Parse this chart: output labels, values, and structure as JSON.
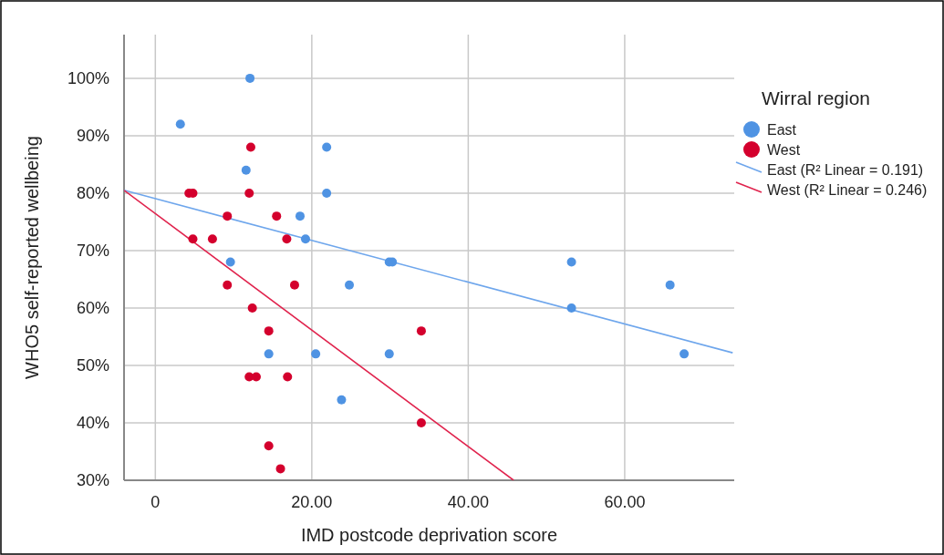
{
  "chart_data": {
    "type": "scatter",
    "xlabel": "IMD postcode deprivation score",
    "ylabel": "WHO5 self-reported wellbeing",
    "legend_title": "Wirral region",
    "legend": "right",
    "grid": true,
    "marker": "circle",
    "xlim": [
      -4,
      74
    ],
    "ylim": [
      30,
      107.6
    ],
    "xticks": [
      0,
      {
        "value": 20,
        "label": "20.00"
      },
      {
        "value": 40,
        "label": "40.00"
      },
      {
        "value": 60,
        "label": "60.00"
      }
    ],
    "yticks": [
      {
        "value": 30,
        "label": "30%"
      },
      {
        "value": 40,
        "label": "40%"
      },
      {
        "value": 50,
        "label": "50%"
      },
      {
        "value": 60,
        "label": "60%"
      },
      {
        "value": 70,
        "label": "70%"
      },
      {
        "value": 80,
        "label": "80%"
      },
      {
        "value": 90,
        "label": "90%"
      },
      {
        "value": 100,
        "label": "100%"
      }
    ],
    "series": [
      {
        "name": "East",
        "color": "#4f93e3",
        "x": [
          12.1,
          3.2,
          11.6,
          21.9,
          21.9,
          18.5,
          19.2,
          9.6,
          29.9,
          30.3,
          24.8,
          14.5,
          20.5,
          29.9,
          23.8,
          53.2,
          53.2,
          65.8,
          67.6
        ],
        "values": [
          100,
          92,
          84,
          88,
          80,
          76,
          72,
          68,
          68,
          68,
          64,
          52,
          52,
          52,
          44,
          68,
          60,
          64,
          52
        ]
      },
      {
        "name": "West",
        "color": "#d4002d",
        "x": [
          12.2,
          4.3,
          4.8,
          12.0,
          9.2,
          15.5,
          4.8,
          7.3,
          16.8,
          9.2,
          17.8,
          12.4,
          14.5,
          34.0,
          12.0,
          12.9,
          16.9,
          34.0,
          14.5,
          16.0
        ],
        "values": [
          88,
          80,
          80,
          80,
          76,
          76,
          72,
          72,
          72,
          64,
          64,
          60,
          56,
          56,
          48,
          48,
          48,
          40,
          36,
          32
        ]
      },
      {
        "name": "East (R² Linear = 0.191)",
        "type": "line",
        "marker": "none",
        "color": "#6ea6ec",
        "x": [
          -4,
          73.8
        ],
        "values": [
          80.5,
          52.2
        ]
      },
      {
        "name": "West (R² Linear = 0.246)",
        "type": "line",
        "marker": "none",
        "color": "#e0234d",
        "x": [
          -4,
          45.8
        ],
        "values": [
          80.5,
          30
        ]
      }
    ]
  }
}
